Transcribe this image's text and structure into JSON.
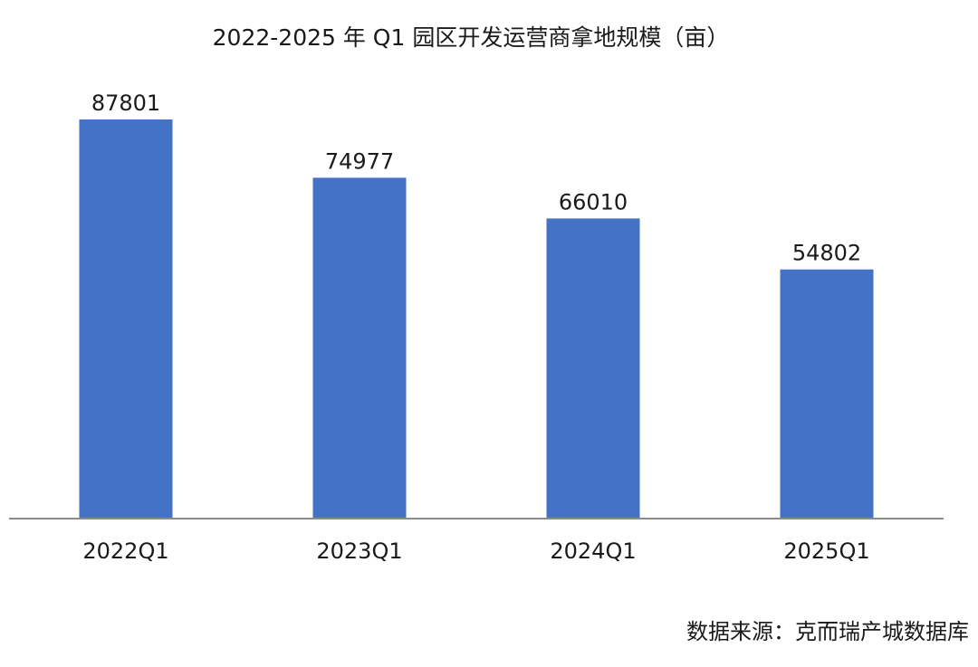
{
  "chart_data": {
    "type": "bar",
    "title": "2022-2025 年 Q1 园区开发运营商拿地规模（亩）",
    "xlabel": "",
    "ylabel": "",
    "categories": [
      "2022Q1",
      "2023Q1",
      "2024Q1",
      "2025Q1"
    ],
    "values": [
      87801,
      74977,
      66010,
      54802
    ],
    "data_labels": [
      "87801",
      "74977",
      "66010",
      "54802"
    ],
    "ylim": [
      0,
      88000
    ],
    "grid": false,
    "legend": "none",
    "bar_color": "#4472C4",
    "axis_color": "#8c8c8c"
  },
  "source_note": "数据来源：克而瑞产城数据库"
}
